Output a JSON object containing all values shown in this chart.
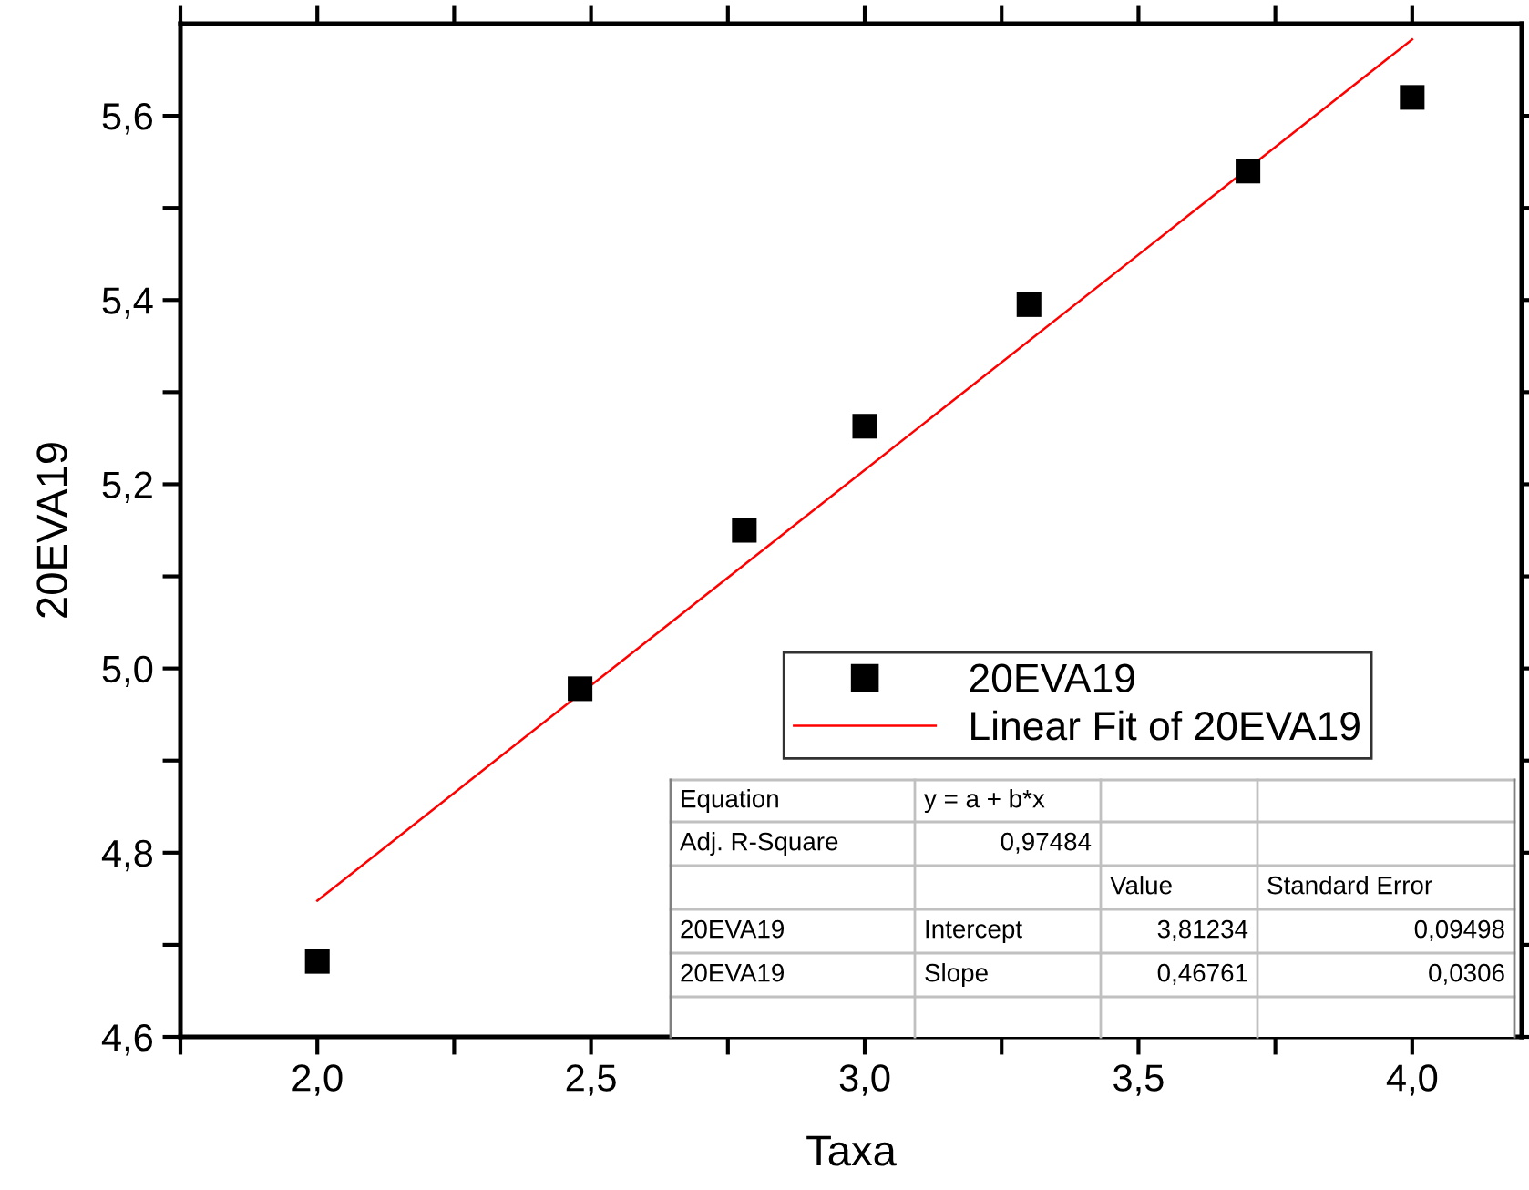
{
  "chart_data": {
    "type": "scatter",
    "xlabel": "Taxa",
    "ylabel": "20EVA19",
    "series": [
      {
        "name": "20EVA19",
        "color": "#000000",
        "marker": "square",
        "x": [
          2.0,
          2.48,
          2.78,
          3.0,
          3.3,
          3.7,
          4.0
        ],
        "values": [
          4.682,
          4.978,
          5.15,
          5.263,
          5.395,
          5.54,
          5.62
        ]
      },
      {
        "name": "Linear Fit of 20EVA19",
        "type": "line",
        "color": "#ff0000",
        "marker": "none",
        "line_style": "solid",
        "x": [
          2.0,
          4.0
        ],
        "values": [
          4.748,
          5.683
        ]
      }
    ],
    "xlim": [
      1.75,
      4.2
    ],
    "ylim": [
      4.6,
      5.7
    ],
    "xticks": [
      {
        "value": 1.75,
        "label": null
      },
      {
        "value": 2.0,
        "label": "2,0"
      },
      {
        "value": 2.25,
        "label": null
      },
      {
        "value": 2.5,
        "label": "2,5"
      },
      {
        "value": 2.75,
        "label": null
      },
      {
        "value": 3.0,
        "label": "3,0"
      },
      {
        "value": 3.25,
        "label": null
      },
      {
        "value": 3.5,
        "label": "3,5"
      },
      {
        "value": 3.75,
        "label": null
      },
      {
        "value": 4.0,
        "label": "4,0"
      }
    ],
    "yticks": [
      {
        "value": 4.6,
        "label": "4,6"
      },
      {
        "value": 4.7,
        "label": null
      },
      {
        "value": 4.8,
        "label": "4,8"
      },
      {
        "value": 4.9,
        "label": null
      },
      {
        "value": 5.0,
        "label": "5,0"
      },
      {
        "value": 5.1,
        "label": null
      },
      {
        "value": 5.2,
        "label": "5,2"
      },
      {
        "value": 5.3,
        "label": null
      },
      {
        "value": 5.4,
        "label": "5,4"
      },
      {
        "value": 5.5,
        "label": null
      },
      {
        "value": 5.6,
        "label": "5,6"
      }
    ],
    "grid": false,
    "legend": "bottom right",
    "annotations": [
      "Equation",
      "y = a + b*x",
      "Adj. R-Square",
      "0,97484",
      "Value",
      "Standard Error",
      "20EVA19",
      "Intercept",
      "3,81234",
      "0,09498",
      "20EVA19",
      "Slope",
      "0,46761",
      "0,0306"
    ]
  }
}
